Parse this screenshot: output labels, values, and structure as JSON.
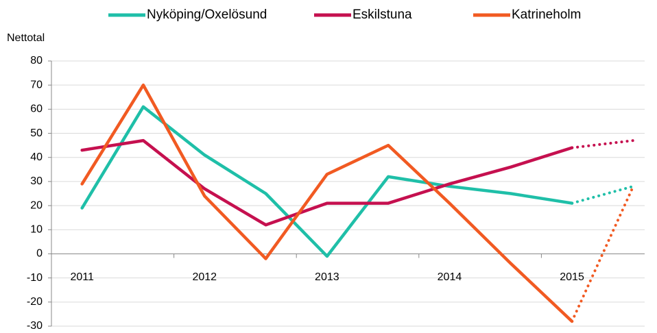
{
  "chart_data": {
    "type": "line",
    "y_label": "Nettotal",
    "categories": [
      "2011",
      null,
      "2012",
      null,
      "2013",
      null,
      "2014",
      null,
      "2015",
      null
    ],
    "series": [
      {
        "name": "Nyköping/Oxelösund",
        "color": "#1fbfa8",
        "values": [
          19,
          61,
          41,
          25,
          -1,
          32,
          28,
          25,
          21,
          28
        ],
        "dotted_from": 8
      },
      {
        "name": "Eskilstuna",
        "color": "#c5104f",
        "values": [
          43,
          47,
          27,
          12,
          21,
          21,
          29,
          36,
          44,
          47
        ],
        "dotted_from": 8
      },
      {
        "name": "Katrineholm",
        "color": "#f15a22",
        "values": [
          29,
          70,
          24,
          -2,
          33,
          45,
          21,
          -4,
          -28,
          28
        ],
        "dotted_from": 8
      }
    ],
    "ylim": [
      -30,
      80
    ],
    "yticks": [
      -30,
      -20,
      -10,
      0,
      10,
      20,
      30,
      40,
      50,
      60,
      70,
      80
    ],
    "grid": true,
    "legend": "top"
  }
}
